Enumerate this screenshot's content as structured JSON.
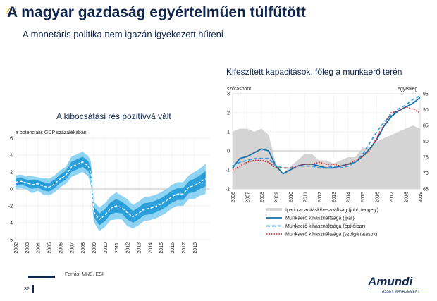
{
  "header": {
    "title": "A magyar gazdaság egyértelműen túlfűtött",
    "subtitle": "A monetáris politika nem igazán igyekezett hűteni"
  },
  "footer": {
    "source": "Forrás: MNB, ESI",
    "page_number": "32",
    "logo_name": "Amundi",
    "logo_tagline": "ASSET MANAGEMENT"
  },
  "colors": {
    "navy": "#10264f",
    "band_outer": "#8fd3f3",
    "band_inner": "#2b9fd9",
    "line_ipar": "#1a6fa8",
    "line_epitoipar": "#3aa0d8",
    "line_szolg": "#d62020",
    "area_gray": "#d4d4d4"
  },
  "chart_data": [
    {
      "type": "area",
      "title": "A kibocsátási rés pozitívvá vált",
      "unit_label": "a potenciális GDP százalékában",
      "ylim": [
        -6,
        6
      ],
      "yticks": [
        -6,
        -4,
        -2,
        0,
        2,
        4,
        6
      ],
      "xlim": [
        2002,
        2019.4
      ],
      "xticks": [
        "2002",
        "2003",
        "2004",
        "2005",
        "2006",
        "2007",
        "2008",
        "2009",
        "2010",
        "2011",
        "2012",
        "2013",
        "2014",
        "2015",
        "2016",
        "2017",
        "2018"
      ],
      "grid": true,
      "x": [
        2002.0,
        2002.5,
        2003.0,
        2003.5,
        2004.0,
        2004.5,
        2005.0,
        2005.5,
        2006.0,
        2006.5,
        2007.0,
        2007.5,
        2008.0,
        2008.5,
        2008.75,
        2009.0,
        2009.5,
        2010.0,
        2010.5,
        2011.0,
        2011.5,
        2012.0,
        2012.5,
        2013.0,
        2013.5,
        2014.0,
        2014.5,
        2015.0,
        2015.5,
        2016.0,
        2016.5,
        2017.0,
        2017.5,
        2018.0,
        2018.5,
        2019.0
      ],
      "series": [
        {
          "role": "central",
          "values": [
            0.8,
            0.9,
            0.7,
            0.5,
            0.6,
            0.3,
            0.2,
            0.6,
            1.2,
            1.6,
            2.6,
            2.9,
            3.2,
            2.7,
            1.8,
            -2.7,
            -3.6,
            -3.1,
            -2.3,
            -2.0,
            -2.2,
            -2.8,
            -3.3,
            -2.9,
            -2.4,
            -2.3,
            -2.1,
            -1.8,
            -1.4,
            -0.9,
            -0.6,
            -0.6,
            0.2,
            0.4,
            0.8,
            1.2
          ]
        },
        {
          "role": "inner_band",
          "lower": [
            0.4,
            0.5,
            0.3,
            0.0,
            0.2,
            -0.2,
            -0.3,
            0.1,
            0.7,
            1.1,
            2.0,
            2.3,
            2.6,
            2.1,
            1.1,
            -3.3,
            -4.3,
            -3.8,
            -3.0,
            -2.8,
            -2.9,
            -3.6,
            -4.0,
            -3.6,
            -3.1,
            -3.0,
            -2.8,
            -2.5,
            -2.1,
            -1.6,
            -1.3,
            -1.3,
            -0.5,
            -0.4,
            0.0,
            0.3
          ],
          "upper": [
            1.2,
            1.3,
            1.1,
            1.0,
            1.0,
            0.8,
            0.7,
            1.1,
            1.7,
            2.1,
            3.2,
            3.5,
            3.8,
            3.3,
            2.5,
            -2.1,
            -2.9,
            -2.4,
            -1.6,
            -1.2,
            -1.5,
            -2.0,
            -2.6,
            -2.2,
            -1.7,
            -1.6,
            -1.4,
            -1.1,
            -0.7,
            -0.2,
            0.1,
            0.1,
            0.9,
            1.2,
            1.6,
            2.1
          ]
        },
        {
          "role": "outer_band",
          "lower": [
            0.0,
            0.1,
            -0.1,
            -0.5,
            -0.2,
            -0.7,
            -0.8,
            -0.4,
            0.2,
            0.6,
            1.4,
            1.7,
            2.0,
            1.5,
            0.4,
            -3.9,
            -5.0,
            -4.5,
            -3.7,
            -3.6,
            -3.6,
            -4.4,
            -4.7,
            -4.3,
            -3.8,
            -3.7,
            -3.5,
            -3.2,
            -2.8,
            -2.3,
            -2.0,
            -2.0,
            -1.2,
            -1.2,
            -0.8,
            -0.6
          ],
          "upper": [
            1.6,
            1.7,
            1.5,
            1.5,
            1.4,
            1.3,
            1.2,
            1.6,
            2.2,
            2.6,
            3.8,
            4.1,
            4.4,
            3.9,
            3.2,
            -1.5,
            -2.2,
            -1.7,
            -0.9,
            -0.4,
            -0.8,
            -1.2,
            -1.9,
            -1.5,
            -1.0,
            -0.9,
            -0.7,
            -0.4,
            0.0,
            0.5,
            0.8,
            0.8,
            1.6,
            2.0,
            2.4,
            3.0
          ]
        }
      ]
    },
    {
      "type": "line",
      "title": "Kifeszített kapacitások, főleg a munkaerő terén",
      "ylabel_left": "szóráspont",
      "ylabel_right": "egyenleg",
      "ylim_left": [
        -2,
        3
      ],
      "yticks_left": [
        -2,
        -1,
        0,
        1,
        2,
        3
      ],
      "ylim_right": [
        65,
        95
      ],
      "yticks_right": [
        65,
        70,
        75,
        80,
        85,
        90,
        95
      ],
      "xlim": [
        2006,
        2019
      ],
      "xticks": [
        "2006",
        "2007",
        "2008",
        "2009",
        "2010",
        "2011",
        "2012",
        "2013",
        "2014",
        "2015",
        "2016",
        "2017",
        "2018",
        "2019"
      ],
      "grid": true,
      "legend": [
        "Ipari kapacitáskihasználtság (jobb tengely)",
        "Munkaerő kihasználtsága (ipar)",
        "Munkaerő kihasználtsága (építőipar)",
        "Munkaerő kihasználtsága (szolgáltatások)"
      ],
      "legend_position": "bottom",
      "x": [
        2006.0,
        2006.5,
        2007.0,
        2007.5,
        2008.0,
        2008.5,
        2009.0,
        2009.5,
        2010.0,
        2010.5,
        2011.0,
        2011.5,
        2012.0,
        2012.5,
        2013.0,
        2013.5,
        2014.0,
        2014.5,
        2015.0,
        2015.5,
        2016.0,
        2016.5,
        2017.0,
        2017.5,
        2018.0,
        2018.5,
        2019.0
      ],
      "series": [
        {
          "name": "Ipari kapacitáskihasználtság (jobb tengely)",
          "axis": "right",
          "style": "area",
          "values": [
            83,
            84,
            84,
            83,
            84,
            82,
            73,
            70,
            72,
            74,
            76,
            76,
            74,
            74,
            73,
            74,
            75,
            75,
            78,
            78,
            80,
            81,
            82,
            83,
            84,
            85,
            84
          ]
        },
        {
          "name": "Munkaerő kihasználtsága (ipar)",
          "axis": "left",
          "style": "solid",
          "values": [
            -0.9,
            -0.4,
            -0.3,
            -0.1,
            0.1,
            0.0,
            -0.8,
            -1.2,
            -1.0,
            -0.8,
            -0.7,
            -0.7,
            -0.8,
            -0.9,
            -0.9,
            -0.8,
            -0.7,
            -0.6,
            -0.3,
            0.1,
            0.6,
            1.3,
            1.8,
            2.1,
            2.3,
            2.5,
            2.8
          ]
        },
        {
          "name": "Munkaerő kihasználtsága (építőipar)",
          "axis": "left",
          "style": "dashed",
          "values": [
            -0.8,
            -0.6,
            -0.5,
            -0.4,
            -0.4,
            -0.4,
            -0.8,
            -0.9,
            -0.9,
            -0.8,
            -0.8,
            -0.8,
            -0.9,
            -0.9,
            -0.8,
            -0.9,
            -0.8,
            -0.6,
            -0.2,
            0.4,
            1.0,
            1.5,
            1.9,
            2.2,
            2.4,
            2.7,
            2.9
          ]
        },
        {
          "name": "Munkaerő kihasználtsága (szolgáltatások)",
          "axis": "left",
          "style": "dotted",
          "values": [
            -1.0,
            -0.8,
            -0.6,
            -0.5,
            -0.5,
            -0.6,
            -0.9,
            -0.9,
            -0.9,
            -0.8,
            -0.7,
            -0.7,
            -0.6,
            -0.7,
            -0.7,
            -0.8,
            -0.7,
            -0.5,
            -0.3,
            0.0,
            0.7,
            1.4,
            2.0,
            2.1,
            2.3,
            2.2,
            2.0
          ]
        }
      ]
    }
  ]
}
